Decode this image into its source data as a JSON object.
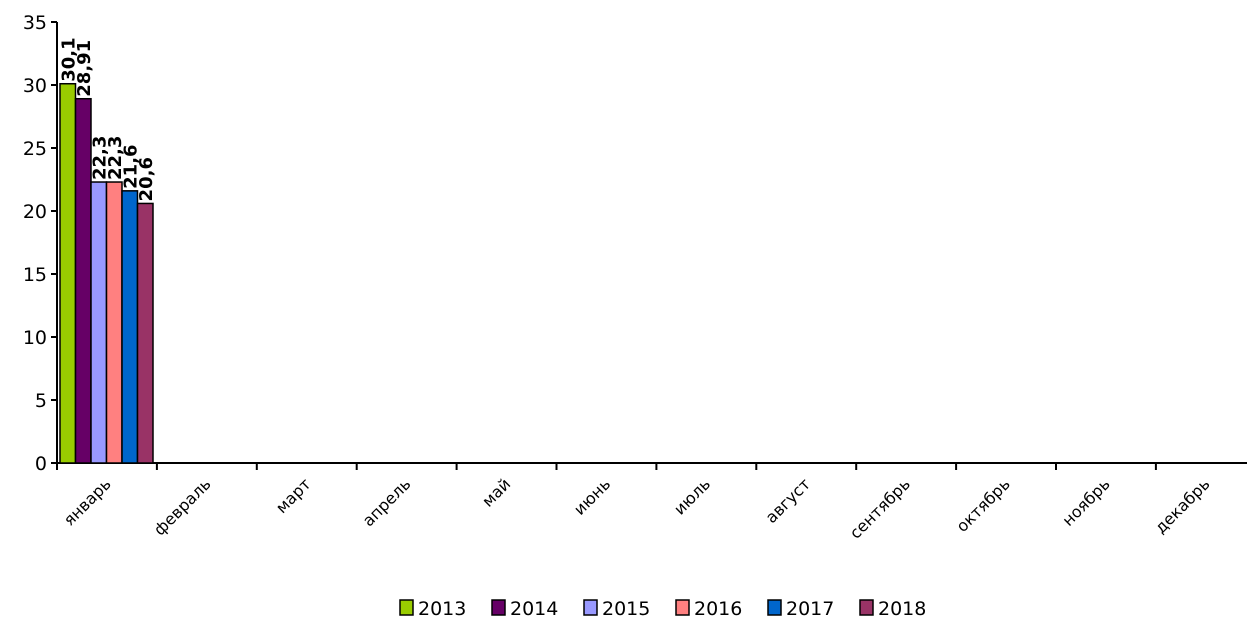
{
  "chart_data": {
    "type": "bar",
    "title": "",
    "xlabel": "",
    "ylabel": "",
    "ylim": [
      0,
      35
    ],
    "yticks": [
      "0",
      "5",
      "10",
      "15",
      "20",
      "25",
      "30",
      "35"
    ],
    "grid": false,
    "legend": "bottom",
    "categories": [
      "январь",
      "февраль",
      "март",
      "апрель",
      "май",
      "июнь",
      "июль",
      "август",
      "сентябрь",
      "октябрь",
      "ноябрь",
      "декабрь"
    ],
    "series": [
      {
        "name": "2013",
        "color": "#99CC00",
        "values": [
          30.1,
          null,
          null,
          null,
          null,
          null,
          null,
          null,
          null,
          null,
          null,
          null
        ],
        "labels": [
          "30,1",
          "",
          "",
          "",
          "",
          "",
          "",
          "",
          "",
          "",
          "",
          ""
        ]
      },
      {
        "name": "2014",
        "color": "#660066",
        "values": [
          28.91,
          null,
          null,
          null,
          null,
          null,
          null,
          null,
          null,
          null,
          null,
          null
        ],
        "labels": [
          "28,91",
          "",
          "",
          "",
          "",
          "",
          "",
          "",
          "",
          "",
          "",
          ""
        ]
      },
      {
        "name": "2015",
        "color": "#9999FF",
        "values": [
          22.3,
          null,
          null,
          null,
          null,
          null,
          null,
          null,
          null,
          null,
          null,
          null
        ],
        "labels": [
          "22,3",
          "",
          "",
          "",
          "",
          "",
          "",
          "",
          "",
          "",
          "",
          ""
        ]
      },
      {
        "name": "2016",
        "color": "#FF8080",
        "values": [
          22.3,
          null,
          null,
          null,
          null,
          null,
          null,
          null,
          null,
          null,
          null,
          null
        ],
        "labels": [
          "22,3",
          "",
          "",
          "",
          "",
          "",
          "",
          "",
          "",
          "",
          "",
          ""
        ]
      },
      {
        "name": "2017",
        "color": "#0066CC",
        "values": [
          21.6,
          null,
          null,
          null,
          null,
          null,
          null,
          null,
          null,
          null,
          null,
          null
        ],
        "labels": [
          "21,6",
          "",
          "",
          "",
          "",
          "",
          "",
          "",
          "",
          "",
          "",
          ""
        ]
      },
      {
        "name": "2018",
        "color": "#993366",
        "values": [
          20.6,
          null,
          null,
          null,
          null,
          null,
          null,
          null,
          null,
          null,
          null,
          null
        ],
        "labels": [
          "20,6",
          "",
          "",
          "",
          "",
          "",
          "",
          "",
          "",
          "",
          "",
          ""
        ]
      }
    ]
  }
}
